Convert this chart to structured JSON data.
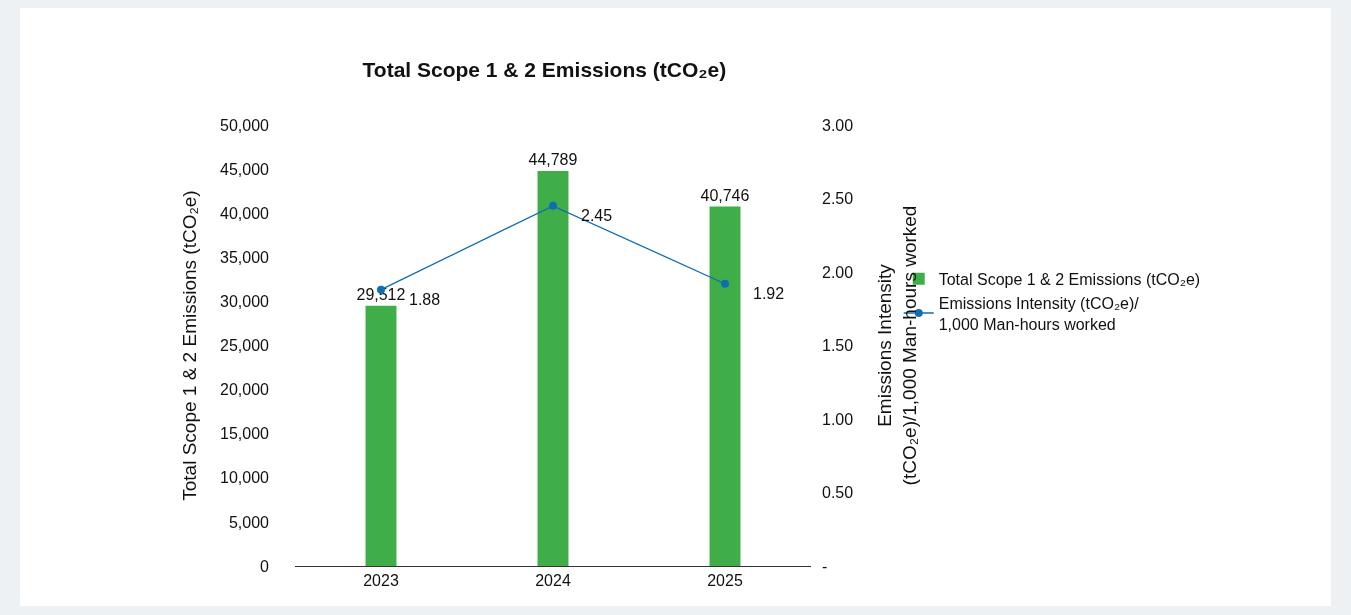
{
  "chart_data": {
    "type": "bar",
    "title": "Total Scope 1 & 2 Emissions (tCO₂e)",
    "ylabel": "Total Scope 1 & 2 Emissions (tCO₂e)",
    "y2label": "Emissions Intensity\n(tCO₂e)/1,000 Man-hours worked",
    "categories": [
      "2023",
      "2024",
      "2025"
    ],
    "series": [
      {
        "name": "Total Scope 1 & 2 Emissions (tCO₂e)",
        "color": "#3fae49",
        "values": [
          29512,
          44789,
          40746
        ],
        "value_labels": [
          "29,512",
          "44,789",
          "40,746"
        ]
      },
      {
        "name": "Emissions Intensity (tCO₂e)/\n1,000 Man-hours worked",
        "type": "line",
        "axis": "y2",
        "color": "#0f6db3",
        "values": [
          1.88,
          2.45,
          1.92
        ]
      }
    ],
    "ylim": [
      0,
      50000
    ],
    "yticks": [
      0,
      {
        "value": 5000,
        "label": "5,000"
      },
      {
        "value": 10000,
        "label": "10,000"
      },
      {
        "value": 15000,
        "label": "15,000"
      },
      {
        "value": 20000,
        "label": "20,000"
      },
      {
        "value": 25000,
        "label": "25,000"
      },
      {
        "value": 30000,
        "label": "30,000"
      },
      {
        "value": 35000,
        "label": "35,000"
      },
      {
        "value": 40000,
        "label": "40,000"
      },
      {
        "value": 45000,
        "label": "45,000"
      },
      {
        "value": 50000,
        "label": "50,000"
      }
    ],
    "y2lim": [
      0,
      3
    ],
    "y2ticks": [
      {
        "value": 0,
        "label": "-"
      },
      {
        "value": 0.5,
        "label": "0.50"
      },
      {
        "value": 1,
        "label": "1.00"
      },
      {
        "value": 1.5,
        "label": "1.50"
      },
      {
        "value": 2,
        "label": "2.00"
      },
      {
        "value": 2.5,
        "label": "2.50"
      },
      {
        "value": 3,
        "label": "3.00"
      }
    ],
    "data_labels": true,
    "grid": false,
    "legend": "right",
    "marker": "circle",
    "line_style": "solid"
  }
}
